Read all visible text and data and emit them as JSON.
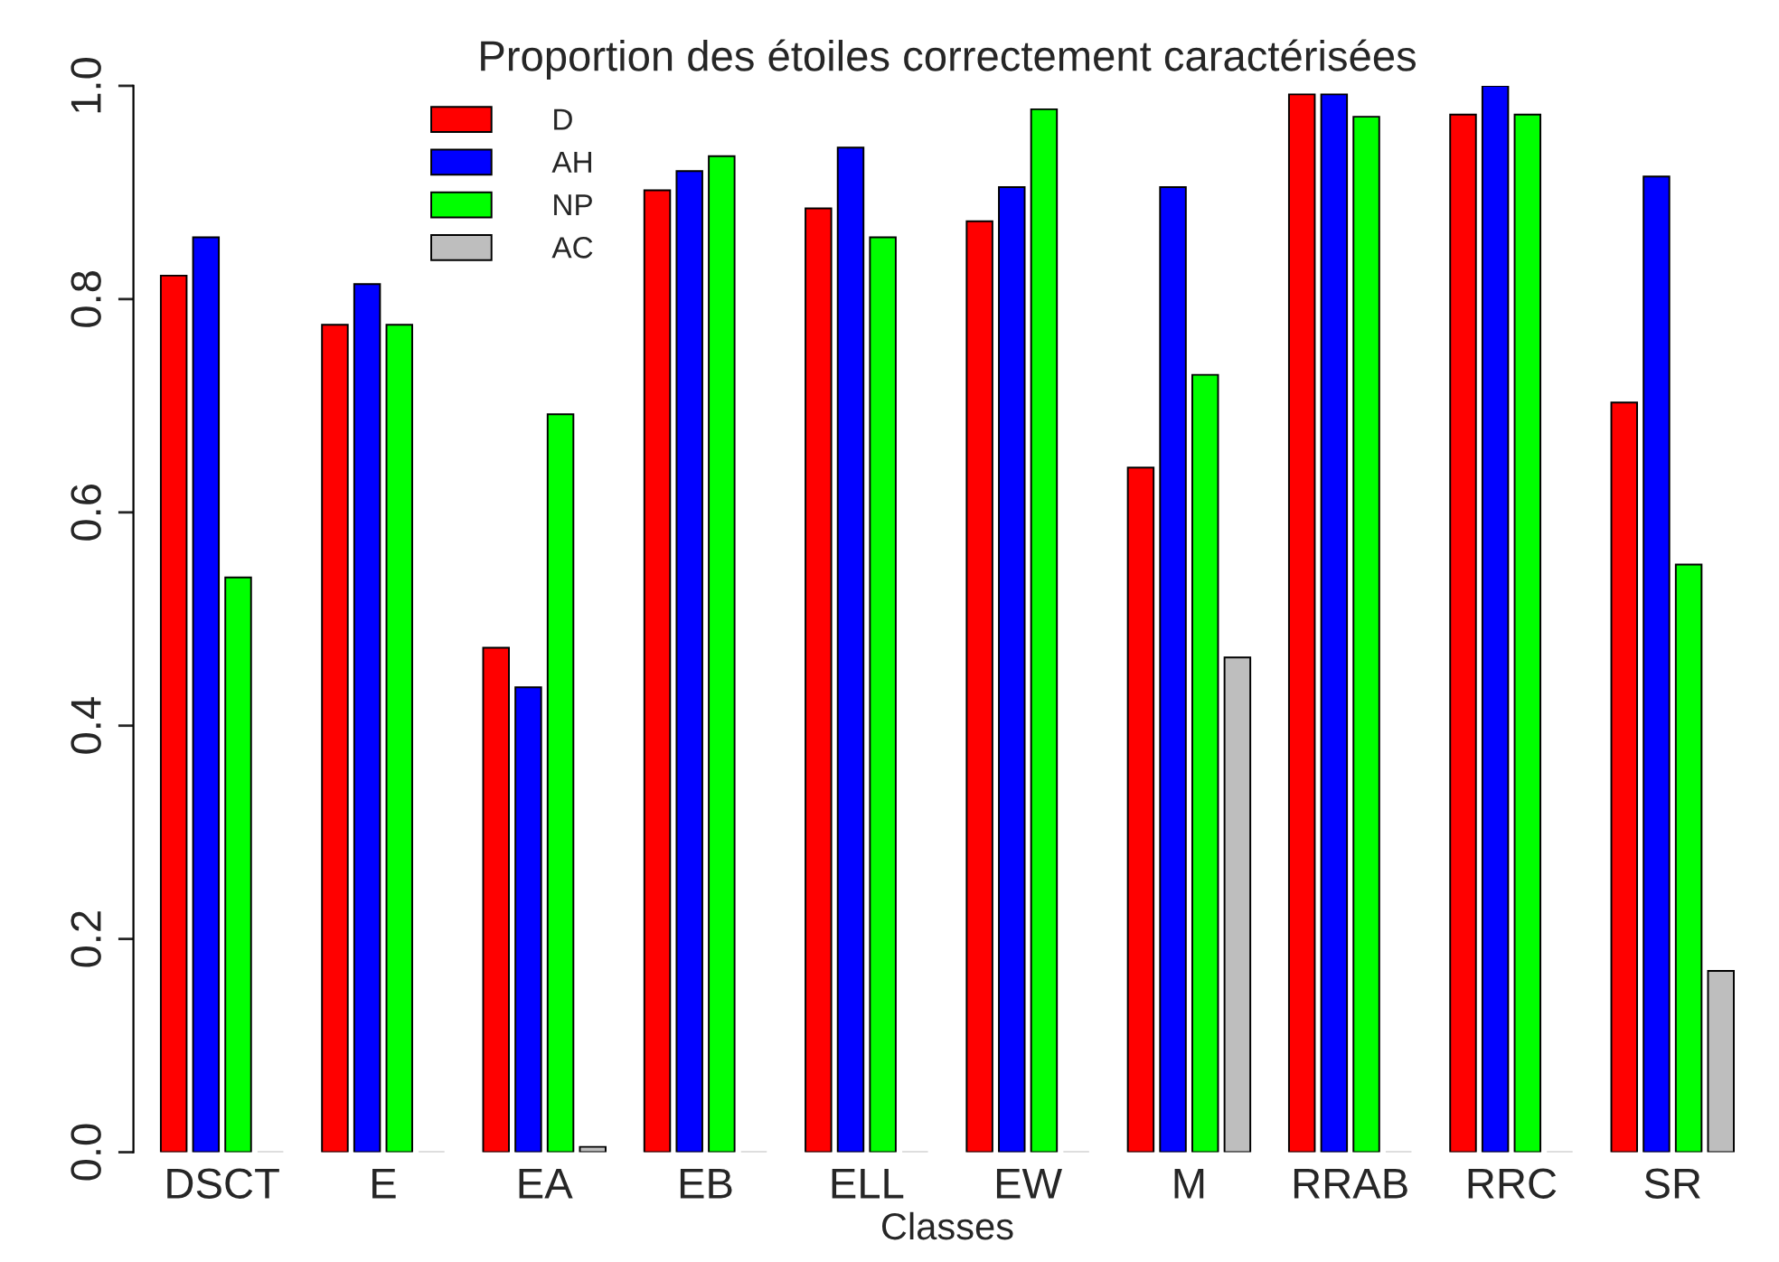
{
  "chart_data": {
    "type": "bar",
    "title": "Proportion des étoiles correctement caractérisées",
    "xlabel": "Classes",
    "categories": [
      "DSCT",
      "E",
      "EA",
      "EB",
      "ELL",
      "EW",
      "M",
      "RRAB",
      "RRC",
      "SR"
    ],
    "series": [
      {
        "name": "D",
        "color": "#ff0000",
        "values": [
          0.822,
          0.776,
          0.473,
          0.902,
          0.885,
          0.873,
          0.642,
          0.992,
          0.973,
          0.703
        ]
      },
      {
        "name": "AH",
        "color": "#0000ff",
        "values": [
          0.858,
          0.814,
          0.436,
          0.92,
          0.942,
          0.905,
          0.905,
          0.992,
          1.0,
          0.915
        ]
      },
      {
        "name": "NP",
        "color": "#00ff00",
        "values": [
          0.539,
          0.776,
          0.692,
          0.934,
          0.858,
          0.978,
          0.729,
          0.971,
          0.973,
          0.551
        ]
      },
      {
        "name": "AC",
        "color": "#bebebe",
        "values": [
          0,
          0,
          0.005,
          0,
          0,
          0,
          0.464,
          0,
          0,
          0.17
        ]
      }
    ],
    "ylim": [
      0,
      1.0
    ],
    "yticks": [
      {
        "value": 0,
        "label": "0.0"
      },
      0.2,
      0.4,
      0.6,
      0.8,
      {
        "value": 1.0,
        "label": "1.0"
      }
    ],
    "grid": false,
    "legend": "top left"
  }
}
